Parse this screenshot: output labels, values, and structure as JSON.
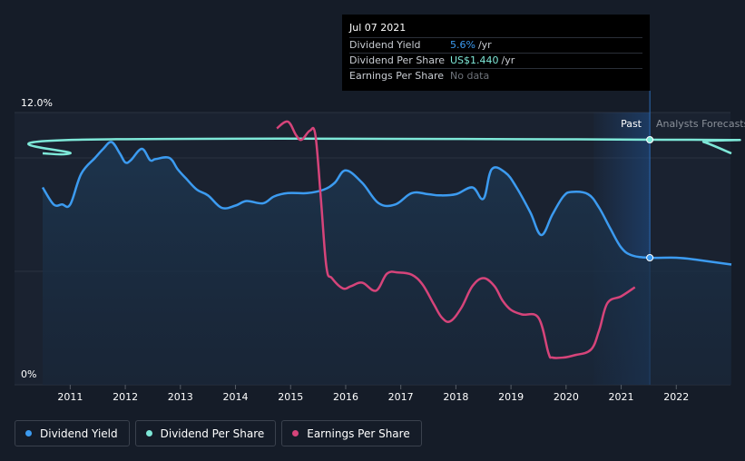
{
  "tooltip": {
    "date": "Jul 07 2021",
    "rows": [
      {
        "label": "Dividend Yield",
        "value": "5.6%",
        "unit": "/yr"
      },
      {
        "label": "Dividend Per Share",
        "value": "US$1.440",
        "unit": "/yr"
      },
      {
        "label": "Earnings Per Share",
        "value": "No data",
        "unit": ""
      }
    ]
  },
  "region_labels": {
    "past": "Past",
    "forecast": "Analysts Forecasts"
  },
  "legend": [
    {
      "label": "Dividend Yield",
      "color": "#3c9bf0"
    },
    {
      "label": "Dividend Per Share",
      "color": "#7ee8d8"
    },
    {
      "label": "Earnings Per Share",
      "color": "#d6447a"
    }
  ],
  "chart_data": {
    "type": "line",
    "x_ticks": [
      "2011",
      "2012",
      "2013",
      "2014",
      "2015",
      "2016",
      "2017",
      "2018",
      "2019",
      "2020",
      "2021",
      "2022"
    ],
    "y_tick_labels": [
      "12.0%",
      "0%"
    ],
    "ylim": [
      0,
      12
    ],
    "xlim": [
      2010.5,
      2023.0
    ],
    "past_end": 2021.52,
    "forecast_start": 2020.5,
    "series": [
      {
        "name": "Dividend Yield",
        "color": "#3c9bf0",
        "points": [
          [
            2010.5,
            8.7
          ],
          [
            2010.7,
            7.95
          ],
          [
            2010.85,
            7.95
          ],
          [
            2011.0,
            7.95
          ],
          [
            2011.2,
            9.3
          ],
          [
            2011.45,
            10.0
          ],
          [
            2011.6,
            10.4
          ],
          [
            2011.75,
            10.7
          ],
          [
            2011.9,
            10.2
          ],
          [
            2012.0,
            9.8
          ],
          [
            2012.1,
            9.9
          ],
          [
            2012.3,
            10.4
          ],
          [
            2012.45,
            9.9
          ],
          [
            2012.55,
            9.95
          ],
          [
            2012.8,
            10.0
          ],
          [
            2012.95,
            9.5
          ],
          [
            2013.1,
            9.1
          ],
          [
            2013.3,
            8.6
          ],
          [
            2013.5,
            8.35
          ],
          [
            2013.75,
            7.8
          ],
          [
            2014.0,
            7.9
          ],
          [
            2014.2,
            8.1
          ],
          [
            2014.5,
            8.0
          ],
          [
            2014.7,
            8.3
          ],
          [
            2014.95,
            8.45
          ],
          [
            2015.3,
            8.45
          ],
          [
            2015.6,
            8.6
          ],
          [
            2015.8,
            8.9
          ],
          [
            2016.0,
            9.45
          ],
          [
            2016.3,
            8.9
          ],
          [
            2016.6,
            8.0
          ],
          [
            2016.9,
            7.95
          ],
          [
            2017.2,
            8.45
          ],
          [
            2017.5,
            8.4
          ],
          [
            2017.7,
            8.35
          ],
          [
            2018.0,
            8.4
          ],
          [
            2018.3,
            8.7
          ],
          [
            2018.5,
            8.2
          ],
          [
            2018.65,
            9.5
          ],
          [
            2018.9,
            9.35
          ],
          [
            2019.1,
            8.7
          ],
          [
            2019.35,
            7.6
          ],
          [
            2019.55,
            6.6
          ],
          [
            2019.75,
            7.5
          ],
          [
            2019.95,
            8.3
          ],
          [
            2020.1,
            8.5
          ],
          [
            2020.4,
            8.4
          ],
          [
            2020.6,
            7.8
          ],
          [
            2020.8,
            6.9
          ],
          [
            2021.0,
            6.05
          ],
          [
            2021.2,
            5.7
          ],
          [
            2021.52,
            5.6
          ],
          [
            2022.0,
            5.6
          ],
          [
            2022.4,
            5.5
          ],
          [
            2023.0,
            5.3
          ]
        ]
      },
      {
        "name": "Dividend Per Share",
        "color": "#7ee8d8",
        "points": [
          [
            2010.5,
            10.2
          ],
          [
            2011.0,
            10.2
          ],
          [
            2011.15,
            10.8
          ],
          [
            2022.2,
            10.8
          ],
          [
            2022.5,
            10.7
          ],
          [
            2023.0,
            10.2
          ]
        ]
      },
      {
        "name": "Earnings Per Share",
        "color": "#d6447a",
        "points": [
          [
            2014.75,
            11.3
          ],
          [
            2014.95,
            11.6
          ],
          [
            2015.1,
            11.0
          ],
          [
            2015.2,
            10.8
          ],
          [
            2015.35,
            11.2
          ],
          [
            2015.45,
            11.0
          ],
          [
            2015.55,
            8.2
          ],
          [
            2015.65,
            5.2
          ],
          [
            2015.75,
            4.7
          ],
          [
            2015.95,
            4.25
          ],
          [
            2016.1,
            4.35
          ],
          [
            2016.3,
            4.5
          ],
          [
            2016.55,
            4.15
          ],
          [
            2016.75,
            4.9
          ],
          [
            2016.95,
            4.95
          ],
          [
            2017.2,
            4.85
          ],
          [
            2017.4,
            4.4
          ],
          [
            2017.6,
            3.55
          ],
          [
            2017.75,
            2.95
          ],
          [
            2017.9,
            2.8
          ],
          [
            2018.1,
            3.4
          ],
          [
            2018.3,
            4.35
          ],
          [
            2018.5,
            4.7
          ],
          [
            2018.7,
            4.35
          ],
          [
            2018.85,
            3.7
          ],
          [
            2019.0,
            3.3
          ],
          [
            2019.2,
            3.1
          ],
          [
            2019.5,
            2.95
          ],
          [
            2019.68,
            1.4
          ],
          [
            2019.75,
            1.2
          ],
          [
            2019.95,
            1.2
          ],
          [
            2020.15,
            1.3
          ],
          [
            2020.45,
            1.55
          ],
          [
            2020.6,
            2.4
          ],
          [
            2020.75,
            3.6
          ],
          [
            2021.0,
            3.9
          ],
          [
            2021.25,
            4.3
          ]
        ]
      }
    ],
    "gridlines": [
      0,
      5,
      10,
      12
    ]
  }
}
